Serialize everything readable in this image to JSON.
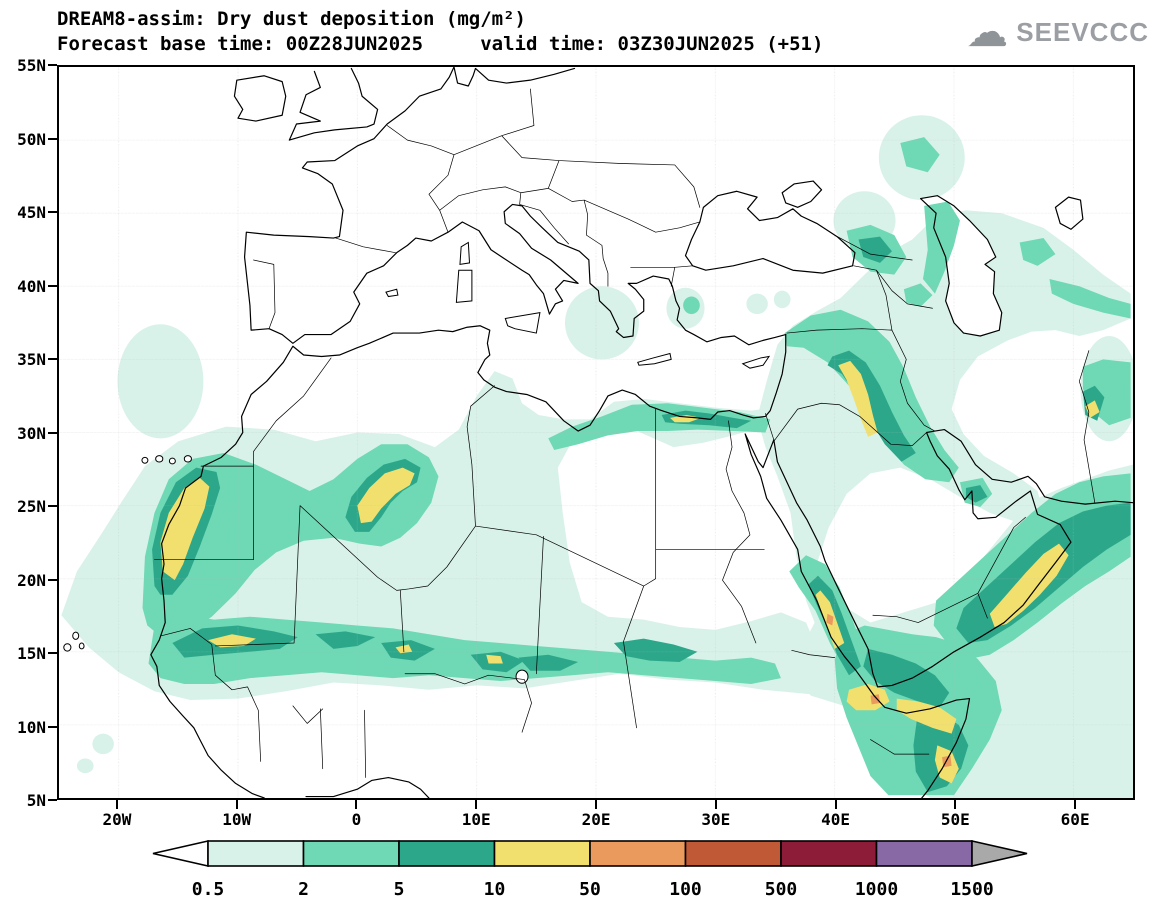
{
  "header": {
    "title": "DREAM8-assim: Dry dust deposition (mg/m²)",
    "subtitle": "Forecast base time: 00Z28JUN2025     valid time: 03Z30JUN2025 (+51)"
  },
  "logo": {
    "text": "SEEVCCC",
    "cloud_icon": "cloud",
    "color": "#9b9fa3"
  },
  "map": {
    "lat_ticks": [
      "55N",
      "50N",
      "45N",
      "40N",
      "35N",
      "30N",
      "25N",
      "20N",
      "15N",
      "10N",
      "5N"
    ],
    "lon_ticks": [
      "20W",
      "10W",
      "0",
      "10E",
      "20E",
      "30E",
      "40E",
      "50E",
      "60E"
    ],
    "lat_range": [
      5,
      55
    ],
    "lon_range": [
      -25,
      65
    ],
    "grid": "dotted"
  },
  "legend": {
    "labels": [
      "0.5",
      "2",
      "5",
      "10",
      "50",
      "100",
      "500",
      "1000",
      "1500"
    ],
    "colors": [
      "#ffffff",
      "#d8f2ea",
      "#6fd8b4",
      "#2ca78a",
      "#f2e06e",
      "#eb9a5e",
      "#c05a36",
      "#8c1c38",
      "#8968a6",
      "#a9a9a9"
    ]
  },
  "chart_data": {
    "type": "heatmap",
    "title": "DREAM8-assim: Dry dust deposition (mg/m²)",
    "units": "mg/m²",
    "forecast_base_time": "00Z28JUN2025",
    "valid_time": "03Z30JUN2025 (+51)",
    "levels": [
      0.5,
      2,
      5,
      10,
      50,
      100,
      500,
      1000,
      1500
    ],
    "level_colors": [
      "#ffffff",
      "#d8f2ea",
      "#6fd8b4",
      "#2ca78a",
      "#f2e06e",
      "#eb9a5e",
      "#c05a36",
      "#8c1c38",
      "#8968a6",
      "#a9a9a9"
    ],
    "lon_range": [
      -25,
      65
    ],
    "lat_range": [
      5,
      55
    ],
    "legend_position": "bottom"
  }
}
